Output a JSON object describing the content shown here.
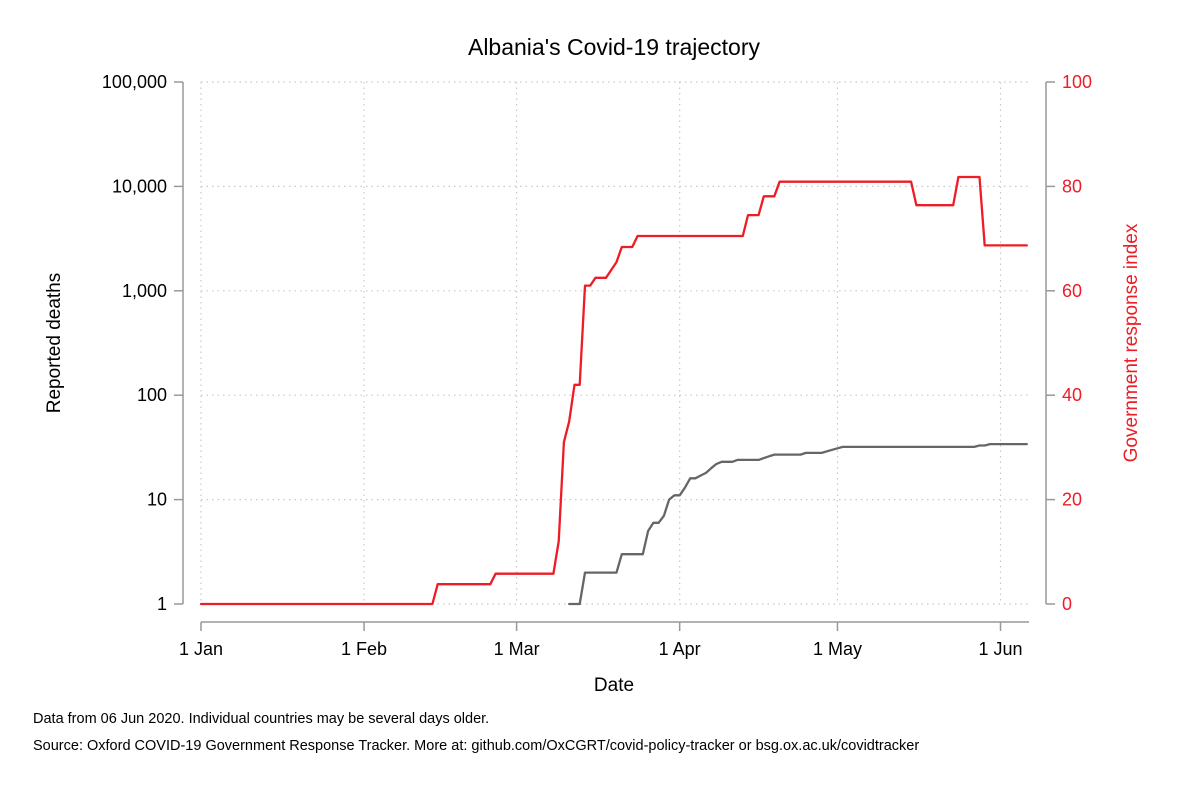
{
  "colors": {
    "deaths": "#666666",
    "response": "#ee1c25",
    "grid": "#c8c8c8",
    "axis": "#999999"
  },
  "chart_data": {
    "type": "line",
    "title": "Albania's Covid-19 trajectory",
    "xlabel": "Date",
    "ylabel_left": "Reported deaths",
    "ylabel_right": "Government response index",
    "x_ticks": [
      "1 Jan",
      "1 Feb",
      "1 Mar",
      "1 Apr",
      "1 May",
      "1 Jun"
    ],
    "x_tick_dates": [
      "2020-01-01",
      "2020-02-01",
      "2020-03-01",
      "2020-04-01",
      "2020-05-01",
      "2020-06-01"
    ],
    "xlim": [
      "2020-01-01",
      "2020-06-06"
    ],
    "y_left_scale": "log",
    "y_left_ticks": [
      1,
      10,
      100,
      1000,
      10000,
      100000
    ],
    "y_left_tick_labels": [
      "1",
      "10",
      "100",
      "1,000",
      "10,000",
      "100,000"
    ],
    "ylim_left": [
      1,
      100000
    ],
    "y_right_ticks": [
      0,
      20,
      40,
      60,
      80,
      100
    ],
    "y_right_tick_labels": [
      "0",
      "20",
      "40",
      "60",
      "80",
      "100"
    ],
    "ylim_right": [
      0,
      100
    ],
    "grid": true,
    "series": [
      {
        "axis": "left",
        "points": [
          [
            "2020-03-11",
            1
          ],
          [
            "2020-03-13",
            1
          ],
          [
            "2020-03-14",
            2
          ],
          [
            "2020-03-20",
            2
          ],
          [
            "2020-03-21",
            3
          ],
          [
            "2020-03-25",
            3
          ],
          [
            "2020-03-26",
            5
          ],
          [
            "2020-03-27",
            6
          ],
          [
            "2020-03-28",
            6
          ],
          [
            "2020-03-29",
            7
          ],
          [
            "2020-03-30",
            10
          ],
          [
            "2020-03-31",
            11
          ],
          [
            "2020-04-01",
            11
          ],
          [
            "2020-04-02",
            13
          ],
          [
            "2020-04-03",
            16
          ],
          [
            "2020-04-04",
            16
          ],
          [
            "2020-04-05",
            17
          ],
          [
            "2020-04-06",
            18
          ],
          [
            "2020-04-07",
            20
          ],
          [
            "2020-04-08",
            22
          ],
          [
            "2020-04-09",
            23
          ],
          [
            "2020-04-11",
            23
          ],
          [
            "2020-04-12",
            24
          ],
          [
            "2020-04-16",
            24
          ],
          [
            "2020-04-17",
            25
          ],
          [
            "2020-04-18",
            26
          ],
          [
            "2020-04-19",
            27
          ],
          [
            "2020-04-24",
            27
          ],
          [
            "2020-04-25",
            28
          ],
          [
            "2020-04-28",
            28
          ],
          [
            "2020-04-29",
            29
          ],
          [
            "2020-04-30",
            30
          ],
          [
            "2020-05-01",
            31
          ],
          [
            "2020-05-02",
            32
          ],
          [
            "2020-05-27",
            32
          ],
          [
            "2020-05-28",
            33
          ],
          [
            "2020-05-29",
            33
          ],
          [
            "2020-05-30",
            34
          ],
          [
            "2020-06-06",
            34
          ]
        ]
      },
      {
        "axis": "right",
        "points": [
          [
            "2020-01-01",
            0
          ],
          [
            "2020-02-14",
            0
          ],
          [
            "2020-02-15",
            3.8
          ],
          [
            "2020-02-25",
            3.8
          ],
          [
            "2020-02-26",
            5.8
          ],
          [
            "2020-03-08",
            5.8
          ],
          [
            "2020-03-09",
            12
          ],
          [
            "2020-03-10",
            31
          ],
          [
            "2020-03-11",
            35
          ],
          [
            "2020-03-12",
            42
          ],
          [
            "2020-03-13",
            42
          ],
          [
            "2020-03-14",
            61
          ],
          [
            "2020-03-15",
            61
          ],
          [
            "2020-03-16",
            62.5
          ],
          [
            "2020-03-18",
            62.5
          ],
          [
            "2020-03-20",
            65.5
          ],
          [
            "2020-03-21",
            68.4
          ],
          [
            "2020-03-23",
            68.4
          ],
          [
            "2020-03-24",
            70.5
          ],
          [
            "2020-04-13",
            70.5
          ],
          [
            "2020-04-14",
            74.5
          ],
          [
            "2020-04-15",
            74.5
          ],
          [
            "2020-04-16",
            74.5
          ],
          [
            "2020-04-17",
            78.1
          ],
          [
            "2020-04-18",
            78.1
          ],
          [
            "2020-04-19",
            78.1
          ],
          [
            "2020-04-20",
            80.9
          ],
          [
            "2020-05-15",
            80.9
          ],
          [
            "2020-05-16",
            76.4
          ],
          [
            "2020-05-23",
            76.4
          ],
          [
            "2020-05-24",
            81.8
          ],
          [
            "2020-05-28",
            81.8
          ],
          [
            "2020-05-29",
            68.7
          ],
          [
            "2020-06-06",
            68.7
          ]
        ]
      }
    ]
  },
  "notes": {
    "data_note": "Data from 06 Jun 2020. Individual countries may be several days older.",
    "source": "Source: Oxford COVID-19 Government Response Tracker. More at: github.com/OxCGRT/covid-policy-tracker or bsg.ox.ac.uk/covidtracker"
  }
}
